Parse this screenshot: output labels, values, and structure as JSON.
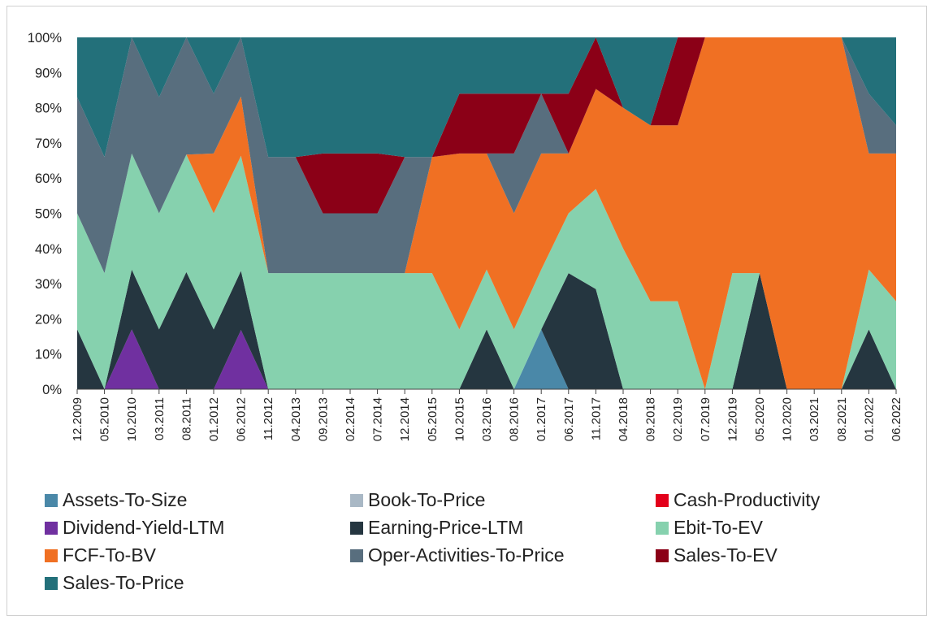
{
  "chart_data": {
    "type": "area",
    "stacked_percent": true,
    "title": "",
    "xlabel": "",
    "ylabel": "",
    "ylim": [
      0,
      100
    ],
    "y_ticks": [
      "0%",
      "10%",
      "20%",
      "30%",
      "40%",
      "50%",
      "60%",
      "70%",
      "80%",
      "90%",
      "100%"
    ],
    "x_tick_labels": [
      "12.2009",
      "05.2010",
      "10.2010",
      "03.2011",
      "08.2011",
      "01.2012",
      "06.2012",
      "11.2012",
      "04.2013",
      "09.2013",
      "02.2014",
      "07.2014",
      "12.2014",
      "05.2015",
      "10.2015",
      "03.2016",
      "08.2016",
      "01.2017",
      "06.2017",
      "11.2017",
      "04.2018",
      "09.2018",
      "02.2019",
      "07.2019",
      "12.2019",
      "05.2020",
      "10.2020",
      "03.2021",
      "08.2021",
      "01.2022",
      "06.2022"
    ],
    "legend_position": "bottom",
    "x": [
      "12.2009",
      "05.2010",
      "10.2010",
      "03.2011",
      "08.2011",
      "01.2012",
      "06.2012",
      "11.2012",
      "04.2013",
      "09.2013",
      "02.2014",
      "07.2014",
      "12.2014",
      "05.2015",
      "10.2015",
      "03.2016",
      "08.2016",
      "01.2017",
      "06.2017",
      "11.2017",
      "04.2018",
      "09.2018",
      "02.2019",
      "07.2019",
      "12.2019",
      "05.2020",
      "10.2020",
      "03.2021",
      "08.2021",
      "01.2022",
      "06.2022"
    ],
    "series": [
      {
        "name": "Assets-To-Size",
        "color": "#4a88a8",
        "values": [
          0,
          0,
          0,
          0,
          0,
          0,
          0,
          0,
          0,
          0,
          0,
          0,
          0,
          0,
          0,
          0,
          0,
          17,
          0,
          0,
          0,
          0,
          0,
          0,
          0,
          0,
          0,
          0,
          0,
          0,
          0
        ]
      },
      {
        "name": "Book-To-Price",
        "color": "#a9b8c5",
        "values": [
          0,
          0,
          0,
          0,
          0,
          0,
          0,
          0,
          0,
          0,
          0,
          0,
          0,
          0,
          0,
          0,
          0,
          0,
          0,
          0,
          0,
          0,
          0,
          0,
          0,
          0,
          0,
          0,
          0,
          0,
          0
        ]
      },
      {
        "name": "Cash-Productivity",
        "color": "#e3001b",
        "values": [
          0,
          0,
          0,
          0,
          0,
          0,
          0,
          0,
          0,
          0,
          0,
          0,
          0,
          0,
          0,
          0,
          0,
          0,
          0,
          0,
          0,
          0,
          0,
          0,
          0,
          0,
          0,
          0,
          0,
          0,
          0
        ]
      },
      {
        "name": "Dividend-Yield-LTM",
        "color": "#7030a0",
        "values": [
          0,
          0,
          17,
          0,
          0,
          0,
          17,
          0,
          0,
          0,
          0,
          0,
          0,
          0,
          0,
          0,
          0,
          0,
          0,
          0,
          0,
          0,
          0,
          0,
          0,
          0,
          0,
          0,
          0,
          0,
          0
        ]
      },
      {
        "name": "Earning-Price-LTM",
        "color": "#253640",
        "values": [
          17,
          0,
          17,
          17,
          33,
          17,
          17,
          0,
          0,
          0,
          0,
          0,
          0,
          0,
          0,
          17,
          0,
          0,
          33,
          33,
          0,
          0,
          0,
          0,
          0,
          33,
          0,
          0,
          0,
          17,
          0
        ]
      },
      {
        "name": "Ebit-To-EV",
        "color": "#86d1ae",
        "values": [
          33,
          33,
          33,
          33,
          33,
          33,
          33,
          33,
          33,
          33,
          33,
          33,
          33,
          33,
          17,
          17,
          17,
          17,
          17,
          33,
          40,
          25,
          25,
          0,
          33,
          0,
          0,
          0,
          0,
          17,
          25
        ]
      },
      {
        "name": "FCF-To-BV",
        "color": "#f07023",
        "values": [
          0,
          0,
          0,
          0,
          0,
          17,
          17,
          0,
          0,
          0,
          0,
          0,
          0,
          33,
          50,
          33,
          33,
          33,
          17,
          33,
          40,
          50,
          50,
          100,
          67,
          67,
          100,
          100,
          100,
          33,
          42
        ]
      },
      {
        "name": "Oper-Activities-To-Price",
        "color": "#586e7e",
        "values": [
          33,
          33,
          33,
          33,
          33,
          17,
          17,
          33,
          33,
          17,
          17,
          17,
          33,
          0,
          0,
          0,
          17,
          17,
          0,
          0,
          0,
          0,
          0,
          0,
          0,
          0,
          0,
          0,
          0,
          17,
          8
        ]
      },
      {
        "name": "Sales-To-EV",
        "color": "#8b0017",
        "values": [
          0,
          0,
          0,
          0,
          0,
          0,
          0,
          0,
          0,
          17,
          17,
          17,
          0,
          0,
          17,
          17,
          17,
          0,
          17,
          17,
          0,
          0,
          25,
          0,
          0,
          0,
          0,
          0,
          0,
          0,
          0
        ]
      },
      {
        "name": "Sales-To-Price",
        "color": "#23707a",
        "values": [
          17,
          34,
          0,
          17,
          0,
          16,
          0,
          34,
          34,
          33,
          33,
          33,
          34,
          34,
          16,
          16,
          16,
          16,
          16,
          0,
          20,
          25,
          0,
          0,
          0,
          0,
          0,
          0,
          0,
          16,
          25
        ]
      }
    ]
  },
  "legend": {
    "items": [
      {
        "label": "Assets-To-Size",
        "color": "#4a88a8"
      },
      {
        "label": "Book-To-Price",
        "color": "#a9b8c5"
      },
      {
        "label": "Cash-Productivity",
        "color": "#e3001b"
      },
      {
        "label": "Dividend-Yield-LTM",
        "color": "#7030a0"
      },
      {
        "label": "Earning-Price-LTM",
        "color": "#253640"
      },
      {
        "label": "Ebit-To-EV",
        "color": "#86d1ae"
      },
      {
        "label": "FCF-To-BV",
        "color": "#f07023"
      },
      {
        "label": "Oper-Activities-To-Price",
        "color": "#586e7e"
      },
      {
        "label": "Sales-To-EV",
        "color": "#8b0017"
      },
      {
        "label": "Sales-To-Price",
        "color": "#23707a"
      }
    ]
  }
}
